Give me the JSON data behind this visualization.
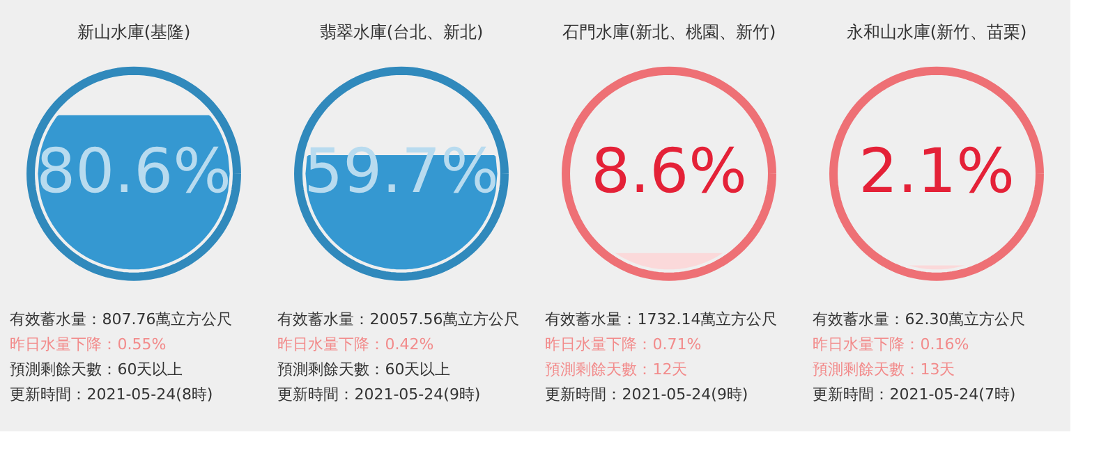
{
  "chart_data": [
    {
      "type": "other",
      "title": "新山水庫(基隆)",
      "values": [
        80.6
      ],
      "value_labels": [
        "80.6%"
      ],
      "colors": [
        "#3598d1"
      ],
      "annotations": [
        "有效蓄水量：807.76萬立方公尺",
        "昨日水量下降：0.55%",
        "預測剩餘天數：60天以上",
        "更新時間：2021-05-24(8時)"
      ]
    },
    {
      "type": "other",
      "title": "翡翠水庫(台北、新北)",
      "values": [
        59.7
      ],
      "value_labels": [
        "59.7%"
      ],
      "colors": [
        "#3598d1"
      ],
      "annotations": [
        "有效蓄水量：20057.56萬立方公尺",
        "昨日水量下降：0.42%",
        "預測剩餘天數：60天以上",
        "更新時間：2021-05-24(9時)"
      ]
    },
    {
      "type": "other",
      "title": "石門水庫(新北、桃園、新竹)",
      "values": [
        8.6
      ],
      "value_labels": [
        "8.6%"
      ],
      "colors": [
        "#fbd9da"
      ],
      "annotations": [
        "有效蓄水量：1732.14萬立方公尺",
        "昨日水量下降：0.71%",
        "預測剩餘天數：12天",
        "更新時間：2021-05-24(9時)"
      ]
    },
    {
      "type": "other",
      "title": "永和山水庫(新竹、苗栗)",
      "values": [
        2.1
      ],
      "value_labels": [
        "2.1%"
      ],
      "colors": [
        "#fbd9da"
      ],
      "annotations": [
        "有效蓄水量：62.30萬立方公尺",
        "昨日水量下降：0.16%",
        "預測剩餘天數：13天",
        "更新時間：2021-05-24(7時)"
      ]
    }
  ]
}
